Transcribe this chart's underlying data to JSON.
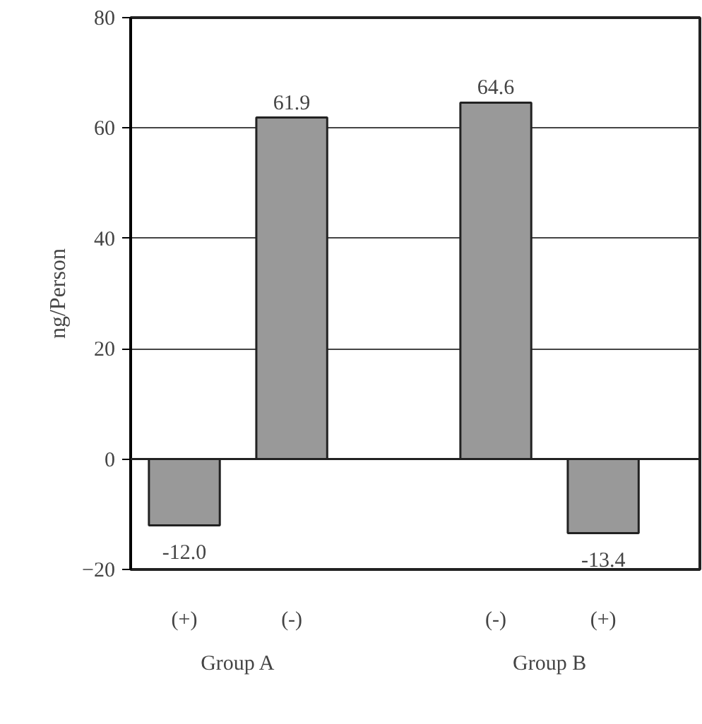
{
  "chart_data": {
    "type": "bar",
    "ylabel": "ng/Person",
    "categories": [
      "(+)",
      "(-)",
      "(-)",
      "(+)"
    ],
    "values": [
      -12.0,
      61.9,
      64.6,
      -13.4
    ],
    "color": "#999999",
    "value_labels": [
      "-12.0",
      "61.9",
      "64.6",
      "-13.4"
    ],
    "ylim": [
      -20,
      80
    ],
    "yticks": [
      -20,
      0,
      20,
      40,
      60,
      80
    ],
    "grid": "y",
    "annotations": [
      "Group A",
      "Group B"
    ]
  }
}
